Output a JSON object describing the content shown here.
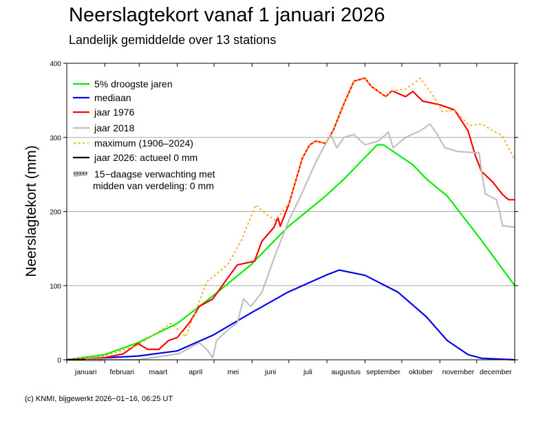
{
  "chart_data": {
    "type": "line",
    "title": "Neerslagtekort vanaf 1 januari 2026",
    "subtitle": "Landelijk gemiddelde over 13 stations",
    "ylabel": "Neerslagtekort (mm)",
    "xlabel": "",
    "x_unit": "day of year",
    "xlim": [
      0,
      365
    ],
    "ylim": [
      0,
      400
    ],
    "yticks": [
      0,
      100,
      200,
      300,
      400
    ],
    "grid": "horizontal",
    "legend_placement": "top-left",
    "months": [
      "januari",
      "februari",
      "maart",
      "april",
      "mei",
      "juni",
      "juli",
      "augustus",
      "september",
      "oktober",
      "november",
      "december"
    ],
    "month_starts": [
      0,
      31,
      59,
      90,
      120,
      151,
      181,
      212,
      243,
      273,
      304,
      334,
      365
    ],
    "series": [
      {
        "name": "5% droogste jaren",
        "color": "#00ee00",
        "style": "solid",
        "points": [
          [
            0,
            0
          ],
          [
            31,
            7
          ],
          [
            58,
            23
          ],
          [
            90,
            49
          ],
          [
            119,
            86
          ],
          [
            150,
            128
          ],
          [
            180,
            179
          ],
          [
            211,
            221
          ],
          [
            226,
            244
          ],
          [
            253,
            290
          ],
          [
            258,
            290
          ],
          [
            282,
            263
          ],
          [
            293,
            244
          ],
          [
            310,
            221
          ],
          [
            338,
            161
          ],
          [
            365,
            100
          ]
        ]
      },
      {
        "name": "mediaan",
        "color": "#0000ee",
        "style": "solid",
        "points": [
          [
            0,
            0
          ],
          [
            58,
            5
          ],
          [
            90,
            12
          ],
          [
            119,
            33
          ],
          [
            150,
            63
          ],
          [
            180,
            91
          ],
          [
            211,
            114
          ],
          [
            222,
            121
          ],
          [
            243,
            114
          ],
          [
            270,
            91
          ],
          [
            293,
            58
          ],
          [
            310,
            26
          ],
          [
            327,
            7
          ],
          [
            338,
            2
          ],
          [
            365,
            0
          ]
        ]
      },
      {
        "name": "jaar 1976",
        "color": "#ff0000",
        "style": "solid",
        "points": [
          [
            0,
            0
          ],
          [
            31,
            3
          ],
          [
            46,
            8
          ],
          [
            58,
            22
          ],
          [
            66,
            14
          ],
          [
            75,
            14
          ],
          [
            83,
            26
          ],
          [
            90,
            30
          ],
          [
            100,
            50
          ],
          [
            108,
            72
          ],
          [
            119,
            82
          ],
          [
            131,
            110
          ],
          [
            139,
            128
          ],
          [
            153,
            133
          ],
          [
            159,
            160
          ],
          [
            169,
            179
          ],
          [
            172,
            192
          ],
          [
            174,
            180
          ],
          [
            181,
            210
          ],
          [
            192,
            272
          ],
          [
            198,
            290
          ],
          [
            203,
            295
          ],
          [
            211,
            292
          ],
          [
            217,
            309
          ],
          [
            226,
            346
          ],
          [
            234,
            376
          ],
          [
            243,
            380
          ],
          [
            248,
            369
          ],
          [
            260,
            355
          ],
          [
            265,
            363
          ],
          [
            276,
            355
          ],
          [
            282,
            362
          ],
          [
            290,
            349
          ],
          [
            304,
            344
          ],
          [
            316,
            337
          ],
          [
            327,
            309
          ],
          [
            333,
            275
          ],
          [
            338,
            254
          ],
          [
            347,
            240
          ],
          [
            355,
            223
          ],
          [
            360,
            216
          ],
          [
            365,
            216
          ]
        ]
      },
      {
        "name": "jaar 2018",
        "color": "#c0c0c0",
        "style": "solid",
        "points": [
          [
            0,
            0
          ],
          [
            58,
            0
          ],
          [
            91,
            8
          ],
          [
            108,
            23
          ],
          [
            114,
            14
          ],
          [
            119,
            3
          ],
          [
            122,
            26
          ],
          [
            131,
            40
          ],
          [
            139,
            50
          ],
          [
            144,
            82
          ],
          [
            150,
            72
          ],
          [
            159,
            91
          ],
          [
            170,
            142
          ],
          [
            181,
            188
          ],
          [
            192,
            226
          ],
          [
            203,
            267
          ],
          [
            215,
            304
          ],
          [
            220,
            286
          ],
          [
            226,
            300
          ],
          [
            234,
            304
          ],
          [
            243,
            290
          ],
          [
            254,
            295
          ],
          [
            262,
            307
          ],
          [
            266,
            286
          ],
          [
            276,
            300
          ],
          [
            288,
            309
          ],
          [
            296,
            318
          ],
          [
            302,
            304
          ],
          [
            308,
            286
          ],
          [
            319,
            281
          ],
          [
            336,
            279
          ],
          [
            338,
            254
          ],
          [
            341,
            224
          ],
          [
            350,
            216
          ],
          [
            353,
            198
          ],
          [
            355,
            181
          ],
          [
            365,
            179
          ]
        ]
      },
      {
        "name": "maximum (1906–2024)",
        "color": "#ffa500",
        "style": "dotted",
        "points": [
          [
            0,
            0
          ],
          [
            31,
            5
          ],
          [
            58,
            20
          ],
          [
            85,
            49
          ],
          [
            97,
            31
          ],
          [
            114,
            105
          ],
          [
            131,
            128
          ],
          [
            142,
            160
          ],
          [
            154,
            209
          ],
          [
            162,
            197
          ],
          [
            170,
            188
          ],
          [
            181,
            210
          ],
          [
            192,
            272
          ],
          [
            198,
            290
          ],
          [
            203,
            295
          ],
          [
            211,
            292
          ],
          [
            217,
            309
          ],
          [
            226,
            346
          ],
          [
            234,
            376
          ],
          [
            243,
            380
          ],
          [
            248,
            369
          ],
          [
            260,
            355
          ],
          [
            265,
            363
          ],
          [
            276,
            365
          ],
          [
            282,
            372
          ],
          [
            288,
            380
          ],
          [
            299,
            355
          ],
          [
            306,
            335
          ],
          [
            316,
            337
          ],
          [
            328,
            316
          ],
          [
            338,
            318
          ],
          [
            355,
            302
          ],
          [
            365,
            270
          ]
        ]
      },
      {
        "name": "jaar 2026: actueel 0 mm",
        "color": "#000000",
        "style": "solid",
        "points": [
          [
            0,
            0
          ],
          [
            15,
            0
          ]
        ]
      },
      {
        "name": "15−daagse verwachting met midden van verdeling: 0 mm",
        "color": "#b0b0b0",
        "style": "band",
        "points": [
          [
            15,
            0
          ],
          [
            30,
            0
          ]
        ]
      }
    ]
  },
  "legend": [
    {
      "label": "5% droogste jaren",
      "color": "#00ee00",
      "style": "solid"
    },
    {
      "label": "mediaan",
      "color": "#0000ee",
      "style": "solid"
    },
    {
      "label": "jaar 1976",
      "color": "#ff0000",
      "style": "solid"
    },
    {
      "label": "jaar 2018",
      "color": "#c0c0c0",
      "style": "solid"
    },
    {
      "label": "maximum (1906–2024)",
      "color": "#ffa500",
      "style": "dotted"
    },
    {
      "label": "jaar 2026: actueel 0 mm",
      "color": "#000000",
      "style": "solid"
    },
    {
      "label": "15−daagse verwachting met",
      "label2": "midden van verdeling: 0 mm",
      "color": "#b0b0b0",
      "style": "band"
    }
  ],
  "footer": "(c) KNMI, bijgewerkt 2026−01−16, 06:25 UT"
}
